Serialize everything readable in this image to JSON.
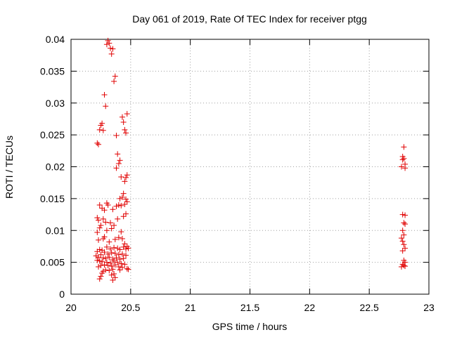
{
  "chart_data": {
    "type": "scatter",
    "title": "Day 061 of 2019, Rate Of TEC Index for receiver ptgg",
    "xlabel": "GPS time / hours",
    "ylabel": "ROTI / TECUs",
    "xlim": [
      20,
      23
    ],
    "ylim": [
      0,
      0.04
    ],
    "xticks": [
      20,
      20.5,
      21,
      21.5,
      22,
      22.5,
      23
    ],
    "xtick_labels": [
      "20",
      "20.5",
      "21",
      "21.5",
      "22",
      "22.5",
      "23"
    ],
    "yticks": [
      0,
      0.005,
      0.01,
      0.015,
      0.02,
      0.025,
      0.03,
      0.035,
      0.04
    ],
    "ytick_labels": [
      "0",
      "0.005",
      "0.01",
      "0.015",
      "0.02",
      "0.025",
      "0.03",
      "0.035",
      "0.04"
    ],
    "grid": true,
    "marker": "+",
    "color": "#e00000",
    "series": [
      {
        "name": "ROTI",
        "points": [
          [
            20.31,
            0.0398
          ],
          [
            20.32,
            0.0394
          ],
          [
            20.3,
            0.0392
          ],
          [
            20.33,
            0.0386
          ],
          [
            20.35,
            0.0385
          ],
          [
            20.34,
            0.0377
          ],
          [
            20.37,
            0.0342
          ],
          [
            20.36,
            0.0334
          ],
          [
            20.28,
            0.0313
          ],
          [
            20.29,
            0.0295
          ],
          [
            20.47,
            0.0283
          ],
          [
            20.43,
            0.0278
          ],
          [
            20.44,
            0.027
          ],
          [
            20.26,
            0.0268
          ],
          [
            20.25,
            0.0265
          ],
          [
            20.24,
            0.0258
          ],
          [
            20.27,
            0.0257
          ],
          [
            20.45,
            0.0258
          ],
          [
            20.46,
            0.0253
          ],
          [
            20.38,
            0.0249
          ],
          [
            20.22,
            0.0237
          ],
          [
            20.23,
            0.0235
          ],
          [
            20.39,
            0.022
          ],
          [
            20.41,
            0.021
          ],
          [
            20.4,
            0.0205
          ],
          [
            20.38,
            0.0198
          ],
          [
            20.47,
            0.0187
          ],
          [
            20.46,
            0.0183
          ],
          [
            20.45,
            0.0177
          ],
          [
            20.42,
            0.0184
          ],
          [
            20.44,
            0.0158
          ],
          [
            20.43,
            0.0152
          ],
          [
            20.41,
            0.015
          ],
          [
            20.46,
            0.0149
          ],
          [
            20.47,
            0.0145
          ],
          [
            20.3,
            0.0143
          ],
          [
            20.31,
            0.014
          ],
          [
            20.24,
            0.014
          ],
          [
            20.38,
            0.0138
          ],
          [
            20.4,
            0.014
          ],
          [
            20.42,
            0.0139
          ],
          [
            20.45,
            0.0141
          ],
          [
            20.26,
            0.0135
          ],
          [
            20.28,
            0.0132
          ],
          [
            20.35,
            0.0133
          ],
          [
            20.22,
            0.012
          ],
          [
            20.23,
            0.0116
          ],
          [
            20.27,
            0.0118
          ],
          [
            20.29,
            0.0113
          ],
          [
            20.33,
            0.0112
          ],
          [
            20.36,
            0.0108
          ],
          [
            20.39,
            0.0118
          ],
          [
            20.44,
            0.0122
          ],
          [
            20.46,
            0.0126
          ],
          [
            20.25,
            0.0108
          ],
          [
            20.24,
            0.0104
          ],
          [
            20.34,
            0.0103
          ],
          [
            20.3,
            0.01
          ],
          [
            20.42,
            0.0098
          ],
          [
            20.22,
            0.0097
          ],
          [
            20.28,
            0.009
          ],
          [
            20.27,
            0.0087
          ],
          [
            20.37,
            0.0086
          ],
          [
            20.4,
            0.0089
          ],
          [
            20.43,
            0.0087
          ],
          [
            20.23,
            0.0085
          ],
          [
            20.32,
            0.0082
          ],
          [
            20.45,
            0.0079
          ],
          [
            20.47,
            0.0075
          ],
          [
            20.46,
            0.0071
          ],
          [
            20.48,
            0.0072
          ],
          [
            20.44,
            0.0074
          ],
          [
            20.41,
            0.007
          ],
          [
            20.39,
            0.0072
          ],
          [
            20.36,
            0.0073
          ],
          [
            20.33,
            0.0071
          ],
          [
            20.3,
            0.0074
          ],
          [
            20.26,
            0.0069
          ],
          [
            20.24,
            0.007
          ],
          [
            20.22,
            0.0067
          ],
          [
            20.28,
            0.0066
          ],
          [
            20.31,
            0.0063
          ],
          [
            20.34,
            0.0065
          ],
          [
            20.37,
            0.0064
          ],
          [
            20.4,
            0.0062
          ],
          [
            20.43,
            0.0063
          ],
          [
            20.46,
            0.0061
          ],
          [
            20.25,
            0.0062
          ],
          [
            20.21,
            0.006
          ],
          [
            20.23,
            0.0058
          ],
          [
            20.27,
            0.0057
          ],
          [
            20.29,
            0.0056
          ],
          [
            20.32,
            0.0058
          ],
          [
            20.35,
            0.0055
          ],
          [
            20.38,
            0.0057
          ],
          [
            20.41,
            0.0055
          ],
          [
            20.44,
            0.0056
          ],
          [
            20.22,
            0.0053
          ],
          [
            20.24,
            0.0052
          ],
          [
            20.26,
            0.0051
          ],
          [
            20.3,
            0.005
          ],
          [
            20.33,
            0.0049
          ],
          [
            20.36,
            0.0052
          ],
          [
            20.39,
            0.005
          ],
          [
            20.42,
            0.0048
          ],
          [
            20.45,
            0.0047
          ],
          [
            20.28,
            0.0046
          ],
          [
            20.31,
            0.0045
          ],
          [
            20.34,
            0.0044
          ],
          [
            20.37,
            0.0046
          ],
          [
            20.25,
            0.0045
          ],
          [
            20.23,
            0.0043
          ],
          [
            20.4,
            0.0043
          ],
          [
            20.43,
            0.0042
          ],
          [
            20.47,
            0.004
          ],
          [
            20.48,
            0.0039
          ],
          [
            20.41,
            0.0038
          ],
          [
            20.35,
            0.0039
          ],
          [
            20.32,
            0.0037
          ],
          [
            20.29,
            0.0038
          ],
          [
            20.27,
            0.0036
          ],
          [
            20.26,
            0.0033
          ],
          [
            20.36,
            0.0032
          ],
          [
            20.34,
            0.003
          ],
          [
            20.25,
            0.0028
          ],
          [
            20.37,
            0.0026
          ],
          [
            20.24,
            0.0024
          ],
          [
            20.35,
            0.0022
          ],
          [
            22.79,
            0.0231
          ],
          [
            22.78,
            0.0216
          ],
          [
            22.79,
            0.0213
          ],
          [
            22.78,
            0.0211
          ],
          [
            22.8,
            0.0204
          ],
          [
            22.77,
            0.02
          ],
          [
            22.8,
            0.0198
          ],
          [
            22.78,
            0.0125
          ],
          [
            22.8,
            0.0124
          ],
          [
            22.79,
            0.0112
          ],
          [
            22.8,
            0.011
          ],
          [
            22.78,
            0.01
          ],
          [
            22.79,
            0.0093
          ],
          [
            22.77,
            0.0088
          ],
          [
            22.78,
            0.0083
          ],
          [
            22.79,
            0.0078
          ],
          [
            22.8,
            0.0072
          ],
          [
            22.78,
            0.0068
          ],
          [
            22.79,
            0.0053
          ],
          [
            22.8,
            0.005
          ],
          [
            22.78,
            0.0047
          ],
          [
            22.79,
            0.0045
          ],
          [
            22.77,
            0.0043
          ],
          [
            22.8,
            0.0044
          ]
        ]
      }
    ]
  }
}
